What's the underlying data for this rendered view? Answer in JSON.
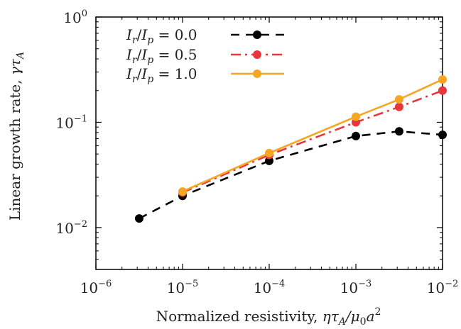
{
  "chart_data": {
    "type": "line",
    "xscale": "log",
    "yscale": "log",
    "xlim": [
      1e-06,
      0.01
    ],
    "ylim": [
      0.004,
      1
    ],
    "x_ticks": [
      {
        "base": "10",
        "exp": "−6"
      },
      {
        "base": "10",
        "exp": "−5"
      },
      {
        "base": "10",
        "exp": "−4"
      },
      {
        "base": "10",
        "exp": "−3"
      },
      {
        "base": "10",
        "exp": "−2"
      }
    ],
    "x_tick_values": [
      1e-06,
      1e-05,
      0.0001,
      0.001,
      0.01
    ],
    "y_ticks": [
      {
        "base": "10",
        "exp": "−2"
      },
      {
        "base": "10",
        "exp": "−1"
      },
      {
        "base": "10",
        "exp": "0"
      }
    ],
    "y_tick_values": [
      0.01,
      0.1,
      1
    ],
    "xlabel": "Normalized resistivity, ητ_A/μ_0a^2",
    "ylabel": "Linear growth rate, γτ_A",
    "legend_position": "top-right",
    "grid": false,
    "series": [
      {
        "name": "I_r/I_p = 0.0",
        "color": "#000000",
        "line_style": "dashed",
        "x": [
          3.16e-06,
          1e-05,
          0.0001,
          0.001,
          0.00316,
          0.01
        ],
        "y": [
          0.0122,
          0.02,
          0.043,
          0.074,
          0.082,
          0.076
        ]
      },
      {
        "name": "I_r/I_p = 0.5",
        "color": "#e8363d",
        "line_style": "dash-dot",
        "x": [
          1e-05,
          0.0001,
          0.001,
          0.00316,
          0.01
        ],
        "y": [
          0.0215,
          0.049,
          0.1,
          0.14,
          0.2
        ]
      },
      {
        "name": "I_r/I_p = 1.0",
        "color": "#f5a623",
        "line_style": "solid",
        "x": [
          1e-05,
          0.0001,
          0.001,
          0.00316,
          0.01
        ],
        "y": [
          0.022,
          0.051,
          0.113,
          0.165,
          0.255
        ]
      }
    ],
    "legend_entries": [
      {
        "lhs_a": "I",
        "lhs_a_sub": "r",
        "lhs_b": "I",
        "lhs_b_sub": "p",
        "value": "= 0.0"
      },
      {
        "lhs_a": "I",
        "lhs_a_sub": "r",
        "lhs_b": "I",
        "lhs_b_sub": "p",
        "value": "= 0.5"
      },
      {
        "lhs_a": "I",
        "lhs_a_sub": "r",
        "lhs_b": "I",
        "lhs_b_sub": "p",
        "value": "= 1.0"
      }
    ]
  }
}
